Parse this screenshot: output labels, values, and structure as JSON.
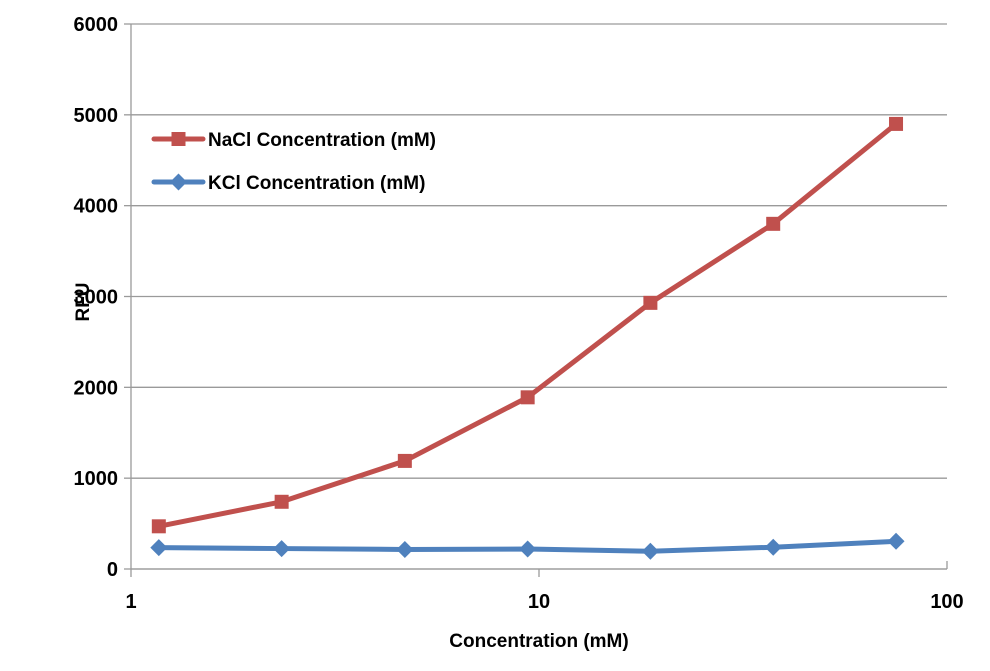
{
  "chart_data": {
    "type": "line",
    "title": "",
    "xlabel": "Concentration (mM)",
    "ylabel": "RFU",
    "x_scale": "log10",
    "x_range": [
      1,
      100
    ],
    "x_tick_labels": [
      "1",
      "10",
      "100"
    ],
    "x_tick_values": [
      1,
      10,
      100
    ],
    "ylim": [
      0,
      6000
    ],
    "y_tick_step": 1000,
    "y_tick_labels": [
      "0",
      "1000",
      "2000",
      "3000",
      "4000",
      "5000",
      "6000"
    ],
    "y_tick_values": [
      0,
      1000,
      2000,
      3000,
      4000,
      5000,
      6000
    ],
    "x": [
      1.17,
      2.34,
      4.69,
      9.38,
      18.75,
      37.5,
      75
    ],
    "series": [
      {
        "name": "NaCl Concentration (mM)",
        "color": "#C0504D",
        "marker": "square",
        "values": [
          470,
          740,
          1190,
          1890,
          2930,
          3800,
          4900
        ]
      },
      {
        "name": "KCl Concentration (mM)",
        "color": "#4F81BD",
        "marker": "diamond",
        "values": [
          235,
          225,
          215,
          220,
          195,
          240,
          305
        ]
      }
    ],
    "legend_position": "inside-top-left",
    "grid": "horizontal-major",
    "grid_color": "#9A9A9A",
    "axis_color": "#9A9A9A",
    "text_color": "#000000",
    "background": "#FFFFFF"
  }
}
